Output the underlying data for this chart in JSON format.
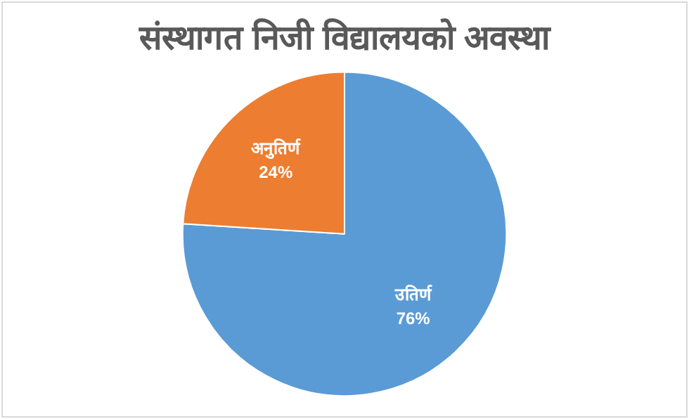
{
  "chart_data": {
    "type": "pie",
    "title": "संस्थागत निजी विद्यालयको अवस्था",
    "categories": [
      "उतिर्ण",
      "अनुतिर्ण"
    ],
    "values": [
      76,
      24
    ],
    "colors": [
      "#5b9bd5",
      "#ed7d31"
    ],
    "value_labels": [
      "76%",
      "24%"
    ],
    "legend": false
  }
}
